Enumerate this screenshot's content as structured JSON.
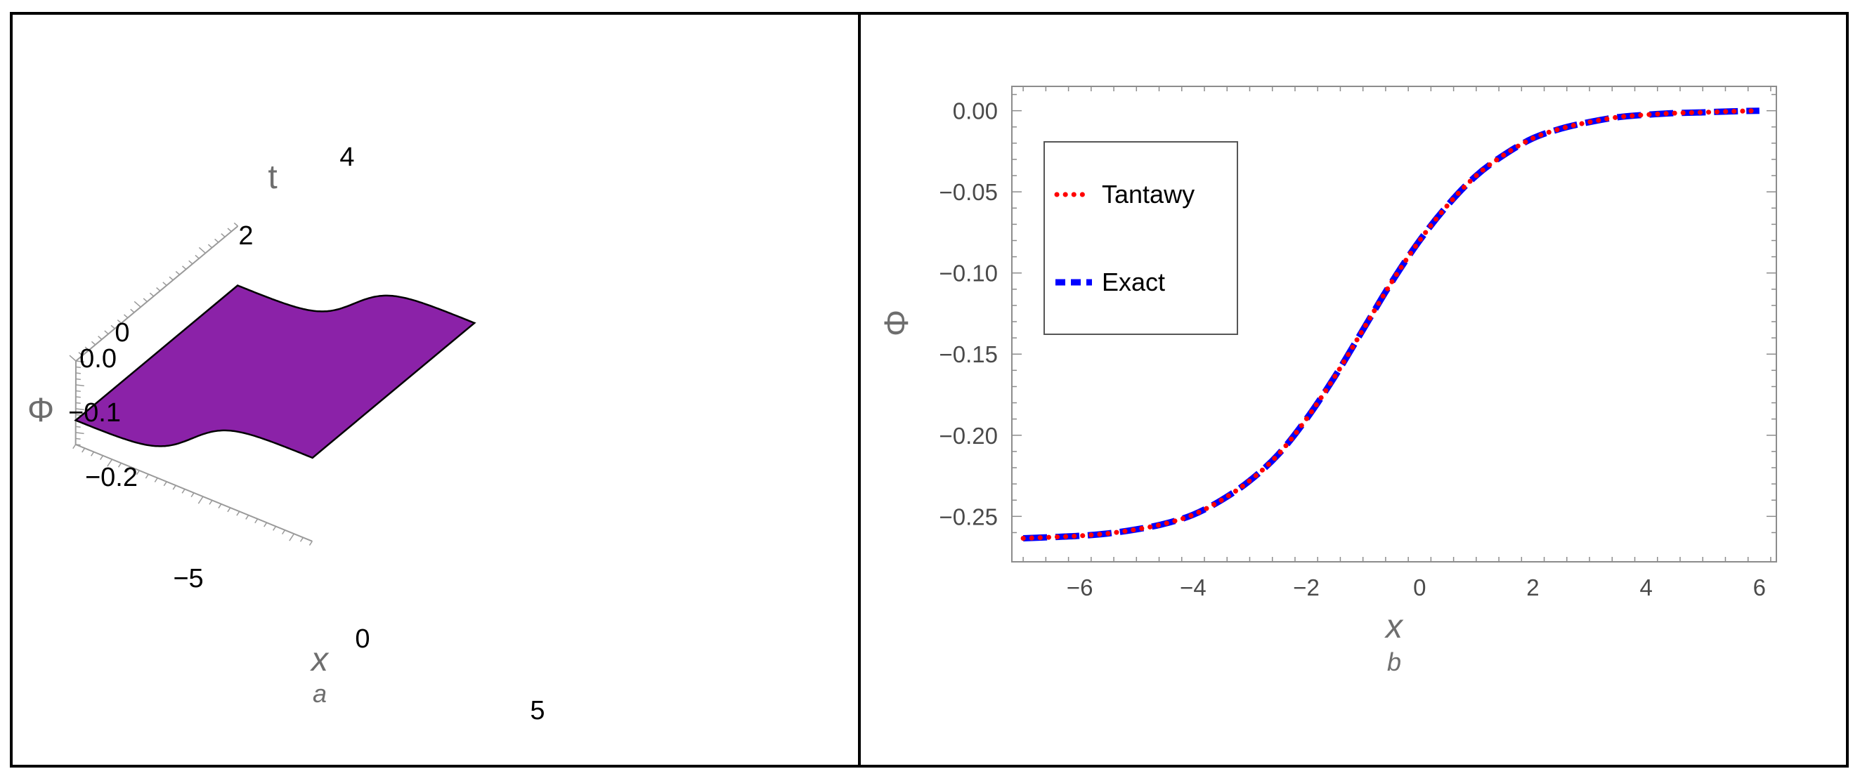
{
  "panel_a": {
    "sublabel": "a",
    "x_label": "x",
    "t_label": "t",
    "phi_label": "Φ",
    "x_ticks": [
      "−5",
      "0",
      "5"
    ],
    "t_ticks": [
      "0",
      "2",
      "4"
    ],
    "phi_ticks": [
      "0.0",
      "−0.1",
      "−0.2"
    ],
    "colors": {
      "low": "#8b22a8",
      "mid_blue": "#2a2ab8",
      "mid_teal": "#2e8a7a",
      "mid_gold": "#c89a28",
      "high": "#ff2a2a"
    }
  },
  "panel_b": {
    "sublabel": "b",
    "legend": [
      {
        "label": "Tantawy",
        "color": "#ff0000",
        "style": "dotted"
      },
      {
        "label": "Exact",
        "color": "#0000ff",
        "style": "dashed"
      }
    ]
  },
  "chart_data": [
    {
      "type": "surface",
      "xlabel": "x",
      "ylabel": "t",
      "zlabel": "Φ",
      "xlim": [
        -7,
        6
      ],
      "ylim": [
        0,
        5
      ],
      "zlim": [
        -0.28,
        0.0
      ],
      "x_ticks": [
        -5,
        0,
        5
      ],
      "y_ticks": [
        0,
        2,
        4
      ],
      "z_ticks": [
        0.0,
        -0.1,
        -0.2
      ],
      "description_points": {
        "x": [
          -7,
          -6,
          -5,
          -4,
          -3,
          -2,
          -1,
          0,
          1,
          2,
          3,
          4,
          5,
          6
        ],
        "phi": [
          -0.263,
          -0.262,
          -0.258,
          -0.249,
          -0.228,
          -0.19,
          -0.135,
          -0.08,
          -0.04,
          -0.017,
          -0.007,
          -0.002,
          -0.001,
          0.0
        ]
      }
    },
    {
      "type": "line",
      "xlabel": "x",
      "ylabel": "Φ",
      "xlim": [
        -7.2,
        6.3
      ],
      "ylim": [
        -0.278,
        0.015
      ],
      "x_ticks": [
        -6,
        -4,
        -2,
        0,
        2,
        4,
        6
      ],
      "y_ticks": [
        0.0,
        -0.05,
        -0.1,
        -0.15,
        -0.2,
        -0.25
      ],
      "x_tick_labels": [
        "−6",
        "−4",
        "−2",
        "0",
        "2",
        "4",
        "6"
      ],
      "y_tick_labels": [
        "0.00",
        "−0.05",
        "−0.10",
        "−0.15",
        "−0.20",
        "−0.25"
      ],
      "series": [
        {
          "name": "Tantawy",
          "x": [
            -7,
            -6.5,
            -6,
            -5.5,
            -5,
            -4.5,
            -4,
            -3.5,
            -3,
            -2.5,
            -2,
            -1.5,
            -1,
            -0.5,
            0,
            0.5,
            1,
            1.5,
            2,
            2.5,
            3,
            3.5,
            4,
            4.5,
            5,
            5.5,
            6
          ],
          "values": [
            -0.2635,
            -0.2628,
            -0.262,
            -0.2605,
            -0.258,
            -0.2545,
            -0.249,
            -0.24,
            -0.228,
            -0.212,
            -0.19,
            -0.164,
            -0.135,
            -0.106,
            -0.08,
            -0.058,
            -0.04,
            -0.027,
            -0.017,
            -0.011,
            -0.007,
            -0.004,
            -0.0025,
            -0.0015,
            -0.001,
            -0.0004,
            0.0
          ]
        },
        {
          "name": "Exact",
          "x": [
            -7,
            -6.5,
            -6,
            -5.5,
            -5,
            -4.5,
            -4,
            -3.5,
            -3,
            -2.5,
            -2,
            -1.5,
            -1,
            -0.5,
            0,
            0.5,
            1,
            1.5,
            2,
            2.5,
            3,
            3.5,
            4,
            4.5,
            5,
            5.5,
            6
          ],
          "values": [
            -0.2635,
            -0.2628,
            -0.262,
            -0.2605,
            -0.258,
            -0.2545,
            -0.249,
            -0.24,
            -0.228,
            -0.212,
            -0.19,
            -0.164,
            -0.135,
            -0.106,
            -0.08,
            -0.058,
            -0.04,
            -0.027,
            -0.017,
            -0.011,
            -0.007,
            -0.004,
            -0.0025,
            -0.0015,
            -0.001,
            -0.0004,
            0.0
          ]
        }
      ]
    }
  ]
}
